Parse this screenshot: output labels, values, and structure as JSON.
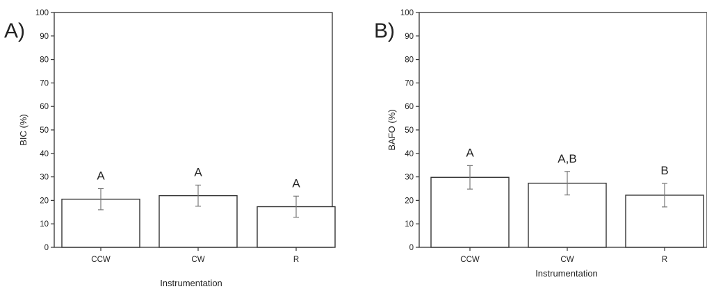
{
  "chart_data": [
    {
      "type": "bar",
      "panel_label": "A)",
      "title": "",
      "xlabel": "Instrumentation",
      "ylabel": "BIC (%)",
      "ylim": [
        0,
        100
      ],
      "yticks": [
        0,
        10,
        20,
        30,
        40,
        50,
        60,
        70,
        80,
        90,
        100
      ],
      "categories": [
        "CCW",
        "CW",
        "R"
      ],
      "values": [
        20.5,
        22,
        17.3
      ],
      "errors": [
        4.5,
        4.5,
        4.5
      ],
      "annotations": [
        "A",
        "A",
        "A"
      ],
      "grid": false,
      "bar_fill": "#ffffff",
      "bar_stroke": "#333333",
      "error_color": "#777777"
    },
    {
      "type": "bar",
      "panel_label": "B)",
      "title": "",
      "xlabel": "Instrumentation",
      "ylabel": "BAFO (%)",
      "ylim": [
        0,
        100
      ],
      "yticks": [
        0,
        10,
        20,
        30,
        40,
        50,
        60,
        70,
        80,
        90,
        100
      ],
      "categories": [
        "CCW",
        "CW",
        "R"
      ],
      "values": [
        29.8,
        27.3,
        22.2
      ],
      "errors": [
        5,
        5,
        5
      ],
      "annotations": [
        "A",
        "A,B",
        "B"
      ],
      "grid": false,
      "bar_fill": "#ffffff",
      "bar_stroke": "#333333",
      "error_color": "#777777"
    }
  ]
}
